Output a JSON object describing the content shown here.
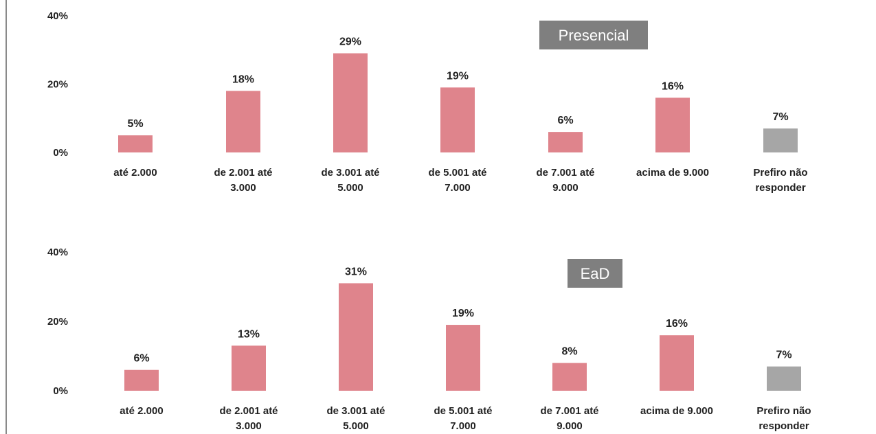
{
  "chart_data": [
    {
      "type": "bar",
      "title": "Presencial",
      "categories": [
        [
          "até 2.000"
        ],
        [
          "de 2.001 até",
          "3.000"
        ],
        [
          "de 3.001 até",
          "5.000"
        ],
        [
          "de 5.001 até",
          "7.000"
        ],
        [
          "de 7.001 até",
          "9.000"
        ],
        [
          "acima de 9.000"
        ],
        [
          "Prefiro não",
          "responder"
        ]
      ],
      "values": [
        5,
        18,
        29,
        19,
        6,
        16,
        7
      ],
      "value_labels": [
        "5%",
        "18%",
        "29%",
        "19%",
        "6%",
        "16%",
        "7%"
      ],
      "yticks": [
        "0%",
        "20%",
        "40%"
      ],
      "ylim": [
        0,
        40
      ],
      "bar_colors": [
        "#df848c",
        "#df848c",
        "#df848c",
        "#df848c",
        "#df848c",
        "#df848c",
        "#a6a6a6"
      ],
      "grid": false,
      "legend": "none"
    },
    {
      "type": "bar",
      "title": "EaD",
      "categories": [
        [
          "até 2.000"
        ],
        [
          "de 2.001 até",
          "3.000"
        ],
        [
          "de 3.001 até",
          "5.000"
        ],
        [
          "de 5.001 até",
          "7.000"
        ],
        [
          "de 7.001 até",
          "9.000"
        ],
        [
          "acima de 9.000"
        ],
        [
          "Prefiro não",
          "responder"
        ]
      ],
      "values": [
        6,
        13,
        31,
        19,
        8,
        16,
        7
      ],
      "value_labels": [
        "6%",
        "13%",
        "31%",
        "19%",
        "8%",
        "16%",
        "7%"
      ],
      "yticks": [
        "0%",
        "20%",
        "40%"
      ],
      "ylim": [
        0,
        40
      ],
      "bar_colors": [
        "#df848c",
        "#df848c",
        "#df848c",
        "#df848c",
        "#df848c",
        "#df848c",
        "#a6a6a6"
      ],
      "grid": false,
      "legend": "none"
    }
  ],
  "colors": {
    "badge": "#7f7f7f",
    "bar": "#df848c",
    "bar_other": "#a6a6a6"
  }
}
